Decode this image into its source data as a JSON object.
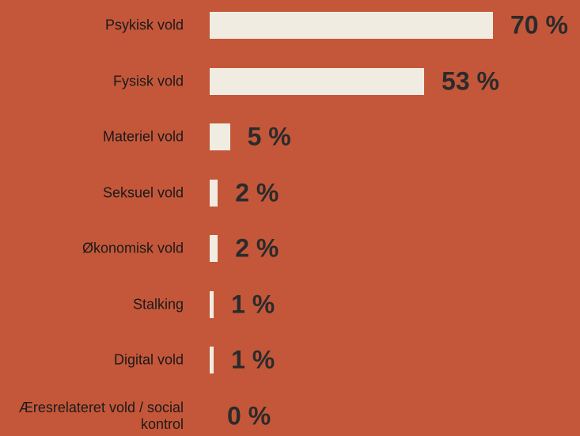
{
  "chart_data": {
    "type": "bar",
    "orientation": "horizontal",
    "categories": [
      "Psykisk vold",
      "Fysisk vold",
      "Materiel vold",
      "Seksuel vold",
      "Økonomisk vold",
      "Stalking",
      "Digital vold",
      "Æresrelateret vold / social kontrol"
    ],
    "values": [
      70,
      53,
      5,
      2,
      2,
      1,
      1,
      0
    ],
    "value_labels": [
      "70 %",
      "53 %",
      "5 %",
      "2 %",
      "2 %",
      "1 %",
      "1 %",
      "0 %"
    ],
    "color": "#f1ece2",
    "xlim": [
      0,
      70
    ]
  }
}
